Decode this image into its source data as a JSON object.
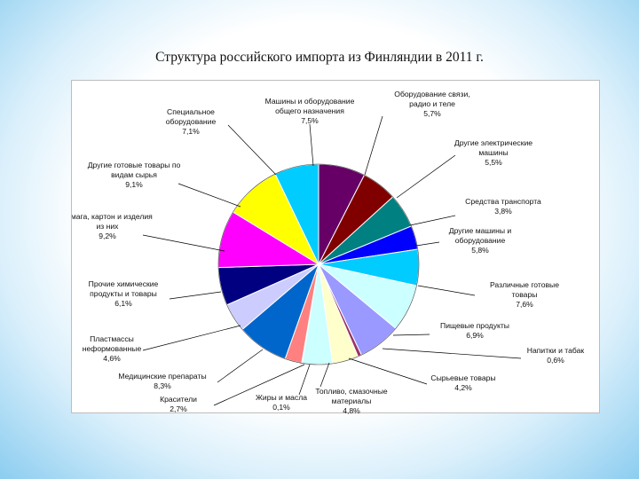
{
  "page": {
    "title": "Структура российского импорта из Финляндии в 2011 г."
  },
  "chart_data": {
    "type": "pie",
    "title": "Структура российского импорта из Финляндии в 2011 г.",
    "legend": "none",
    "slices": [
      {
        "name": "Машины и оборудование общего назначения",
        "value": 7.5,
        "value_label": "7,5%",
        "lines": [
          "Машины и оборудование",
          "общего назначения",
          "7,5%"
        ],
        "color": "#660066"
      },
      {
        "name": "Оборудование связи, радио и теле",
        "value": 5.7,
        "value_label": "5,7%",
        "lines": [
          "Оборудование связи,",
          "радио и теле",
          "5,7%"
        ],
        "color": "#800000"
      },
      {
        "name": "Другие электрические машины",
        "value": 5.5,
        "value_label": "5,5%",
        "lines": [
          "Другие электрические",
          "машины",
          "5,5%"
        ],
        "color": "#008080"
      },
      {
        "name": "Средства транспорта",
        "value": 3.8,
        "value_label": "3,8%",
        "lines": [
          "Средства транспорта",
          "3,8%"
        ],
        "color": "#0000ff"
      },
      {
        "name": "Другие машины и оборудование",
        "value": 5.8,
        "value_label": "5,8%",
        "lines": [
          "Другие машины и",
          "оборудование",
          "5,8%"
        ],
        "color": "#00ccff"
      },
      {
        "name": "Различные готовые товары",
        "value": 7.6,
        "value_label": "7,6%",
        "lines": [
          "Различные готовые",
          "товары",
          "7,6%"
        ],
        "color": "#ccffff"
      },
      {
        "name": "Пищевые продукты",
        "value": 6.9,
        "value_label": "6,9%",
        "lines": [
          "Пищевые продукты",
          "6,9%"
        ],
        "color": "#9999ff"
      },
      {
        "name": "Напитки и табак",
        "value": 0.6,
        "value_label": "0,6%",
        "lines": [
          "Напитки и табак",
          "0,6%"
        ],
        "color": "#993366"
      },
      {
        "name": "Сырьевые товары",
        "value": 4.2,
        "value_label": "4,2%",
        "lines": [
          "Сырьевые товары",
          "4,2%"
        ],
        "color": "#ffffcc"
      },
      {
        "name": "Топливо, смазочные материалы",
        "value": 4.8,
        "value_label": "4,8%",
        "lines": [
          "Топливо, смазочные",
          "материалы",
          "4,8%"
        ],
        "color": "#ccffff"
      },
      {
        "name": "Жиры и масла",
        "value": 0.1,
        "value_label": "0,1%",
        "lines": [
          "Жиры и масла",
          "0,1%"
        ],
        "color": "#ff8080"
      },
      {
        "name": "Красители",
        "value": 2.7,
        "value_label": "2,7%",
        "lines": [
          "Красители",
          "2,7%"
        ],
        "color": "#ff8080"
      },
      {
        "name": "Медицинские препараты",
        "value": 8.3,
        "value_label": "8,3%",
        "lines": [
          "Медицинские препараты",
          "8,3%"
        ],
        "color": "#0066cc"
      },
      {
        "name": "Пластмассы неформованные",
        "value": 4.6,
        "value_label": "4,6%",
        "lines": [
          "Пластмассы",
          "неформованные",
          "4,6%"
        ],
        "color": "#ccccff"
      },
      {
        "name": "Прочие химические продукты и товары",
        "value": 6.1,
        "value_label": "6,1%",
        "lines": [
          "Прочие химические",
          "продукты и товары",
          "6,1%"
        ],
        "color": "#000080"
      },
      {
        "name": "Бумага, картон и изделия из них",
        "value": 9.2,
        "value_label": "9,2%",
        "lines": [
          "Бумага, картон и изделия",
          "из них",
          "9,2%"
        ],
        "color": "#ff00ff"
      },
      {
        "name": "Другие готовые товары по видам сырья",
        "value": 9.1,
        "value_label": "9,1%",
        "lines": [
          "Другие готовые товары по",
          "видам сырья",
          "9,1%"
        ],
        "color": "#ffff00"
      },
      {
        "name": "Специальное оборудование",
        "value": 7.1,
        "value_label": "7,1%",
        "lines": [
          "Специальное",
          "оборудование",
          "7,1%"
        ],
        "color": "#00ccff"
      }
    ]
  }
}
